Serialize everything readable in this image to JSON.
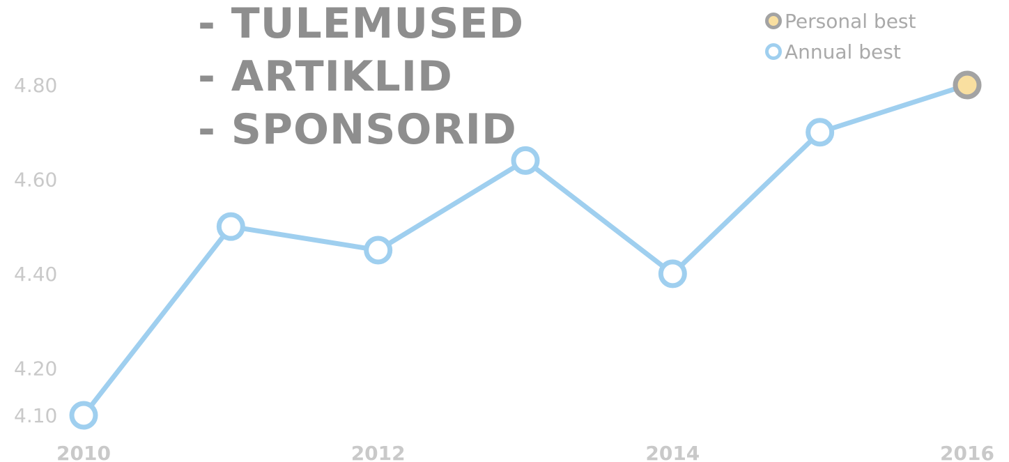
{
  "overlay_menu": {
    "items": [
      "- TULEMUSED",
      "- ARTIKLID",
      "- SPONSORID"
    ]
  },
  "legend": {
    "personal_best_label": "Personal best",
    "annual_best_label": "Annual best"
  },
  "colors": {
    "line": "#9fcfef",
    "marker_fill": "#ffffff",
    "pb_fill": "#f9dfa0",
    "pb_stroke": "#a3a3a3",
    "tick_text": "#c9c9c9",
    "overlay_text": "#8e8e8e"
  },
  "chart_data": {
    "type": "line",
    "title": "",
    "xlabel": "",
    "ylabel": "",
    "xlim": [
      2010,
      2016
    ],
    "ylim": [
      4.1,
      4.8
    ],
    "x_ticks": [
      2010,
      2012,
      2014,
      2016
    ],
    "y_ticks": [
      4.1,
      4.2,
      4.4,
      4.6,
      4.8
    ],
    "x_tick_labels": [
      "2010",
      "2012",
      "2014",
      "2016"
    ],
    "y_tick_labels": [
      "4.10",
      "4.20",
      "4.40",
      "4.60",
      "4.80"
    ],
    "grid": false,
    "legend_position": "top-right",
    "series": [
      {
        "name": "Annual best",
        "x": [
          2010,
          2011,
          2012,
          2013,
          2014,
          2015,
          2016
        ],
        "y": [
          4.1,
          4.5,
          4.45,
          4.64,
          4.4,
          4.7,
          4.8
        ]
      }
    ],
    "personal_best": {
      "x": 2016,
      "y": 4.8
    }
  }
}
